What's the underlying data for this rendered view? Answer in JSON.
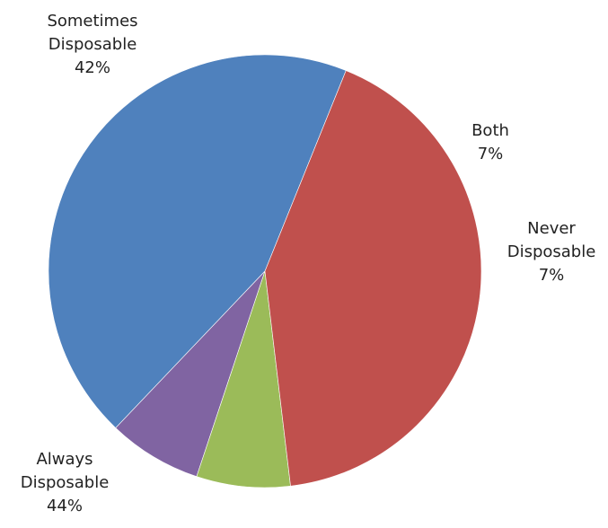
{
  "chart_data": {
    "type": "pie",
    "start_angle_deg": 68,
    "direction": "counterclockwise",
    "slices": [
      {
        "label_lines": [
          "Always",
          "Disposable"
        ],
        "pct_label": "44%",
        "value": 44,
        "color": "#4F81BD"
      },
      {
        "label_lines": [
          "Never",
          "Disposable"
        ],
        "pct_label": "7%",
        "value": 7,
        "color": "#8064A2"
      },
      {
        "label_lines": [
          "Both"
        ],
        "pct_label": "7%",
        "value": 7,
        "color": "#9BBB59"
      },
      {
        "label_lines": [
          "Sometimes",
          "Disposable"
        ],
        "pct_label": "42%",
        "value": 42,
        "color": "#C0504D"
      }
    ]
  }
}
